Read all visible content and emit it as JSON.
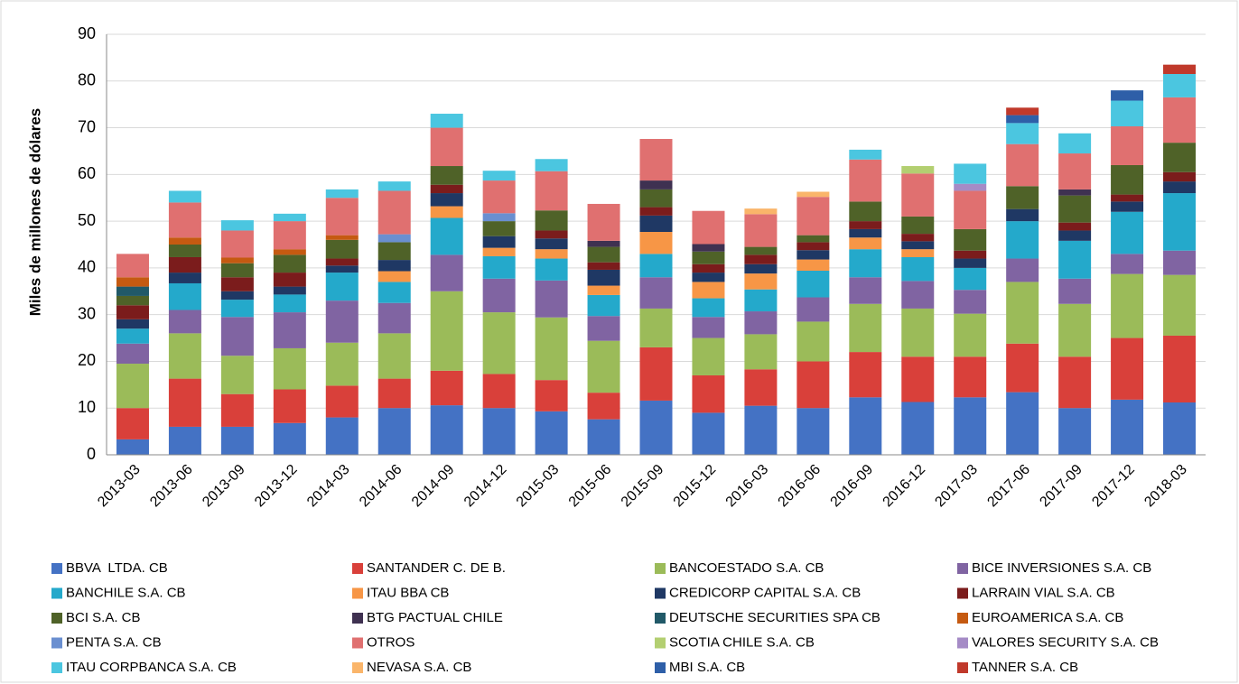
{
  "chart_data": {
    "type": "stacked_bar",
    "y_label": "Miles de millones de dólares",
    "categories": [
      "2013-03",
      "2013-06",
      "2013-09",
      "2013-12",
      "2014-03",
      "2014-06",
      "2014-09",
      "2014-12",
      "2015-03",
      "2015-06",
      "2015-09",
      "2015-12",
      "2016-03",
      "2016-06",
      "2016-09",
      "2016-12",
      "2017-03",
      "2017-06",
      "2017-09",
      "2017-12",
      "2018-03"
    ],
    "ylim": [
      0,
      90
    ],
    "yticks": [
      0,
      10,
      20,
      30,
      40,
      50,
      60,
      70,
      80,
      90
    ],
    "grid": true,
    "legend": "bottom",
    "series": [
      {
        "name": "BBVA  LTDA. CB",
        "color": "#4472c4",
        "values": [
          3.3,
          6,
          6,
          6.8,
          8,
          10,
          10.6,
          10,
          9.3,
          7.6,
          11.6,
          9,
          10.5,
          10,
          12.3,
          11.3,
          12.3,
          13.4,
          10,
          11.8,
          11.2
        ]
      },
      {
        "name": "SANTANDER C. DE B.",
        "color": "#d9403a",
        "values": [
          6.7,
          10.3,
          7,
          7.2,
          6.8,
          6.3,
          7.4,
          7.3,
          6.7,
          5.7,
          11.4,
          8,
          7.8,
          10,
          9.7,
          9.7,
          8.7,
          10.4,
          11,
          13.2,
          14.3
        ]
      },
      {
        "name": "BANCOESTADO S.A. CB",
        "color": "#9bbb59",
        "values": [
          9.5,
          9.7,
          8.2,
          8.8,
          9.2,
          9.7,
          17,
          13.2,
          13.4,
          11.1,
          8.3,
          8,
          7.5,
          8.5,
          10.3,
          10.3,
          9.2,
          13.2,
          11.3,
          13.7,
          13
        ]
      },
      {
        "name": "BICE INVERSIONES S.A. CB",
        "color": "#8064a2",
        "values": [
          4.3,
          5,
          8.3,
          7.7,
          9,
          6.5,
          7.8,
          7.2,
          7.9,
          5.3,
          6.7,
          4.5,
          4.9,
          5.2,
          5.7,
          5.9,
          5.1,
          5,
          5.4,
          4.3,
          5.2
        ]
      },
      {
        "name": "BANCHILE S.A. CB",
        "color": "#24a9cb",
        "values": [
          3.2,
          5.7,
          3.7,
          3.8,
          6,
          4.5,
          7.9,
          4.8,
          4.7,
          4.5,
          5,
          4,
          4.7,
          5.7,
          6,
          5.1,
          4.7,
          8,
          8.1,
          9,
          12.3
        ]
      },
      {
        "name": "ITAU BBA CB",
        "color": "#f79646",
        "values": [
          0,
          0,
          0,
          0,
          0,
          2.3,
          2.5,
          1.8,
          2,
          2,
          4.7,
          3.5,
          3.4,
          2.4,
          2.5,
          1.7,
          0,
          0,
          0,
          0,
          0
        ]
      },
      {
        "name": "CREDICORP CAPITAL S.A. CB",
        "color": "#1f3864",
        "values": [
          2,
          2.3,
          1.8,
          1.7,
          1.5,
          2.4,
          2.8,
          2.5,
          2.3,
          3.4,
          3.5,
          2,
          2,
          2,
          1.8,
          1.7,
          2,
          2.6,
          2.2,
          2.2,
          2.5
        ]
      },
      {
        "name": "LARRAIN VIAL S.A. CB",
        "color": "#7b1c1c",
        "values": [
          3,
          3.3,
          3,
          3,
          1.5,
          0,
          1.8,
          0,
          1.7,
          1.6,
          1.8,
          1.8,
          2,
          1.7,
          1.7,
          1.6,
          1.7,
          0,
          1.7,
          1.5,
          2
        ]
      },
      {
        "name": "BCI S.A. CB",
        "color": "#4f6228",
        "values": [
          2,
          2.7,
          3,
          3.8,
          4,
          3.8,
          4,
          3.2,
          4.3,
          3.3,
          3.8,
          2.7,
          1.7,
          1.5,
          4.2,
          3.7,
          4.6,
          4.9,
          5.8,
          6.3,
          6.3
        ]
      },
      {
        "name": "BTG PACTUAL CHILE",
        "color": "#3f3151",
        "values": [
          0,
          0,
          0,
          0,
          0,
          0,
          0,
          0,
          0,
          1.3,
          1.9,
          1.6,
          0,
          0,
          0,
          0,
          0,
          0,
          1.3,
          0,
          0
        ]
      },
      {
        "name": "DEUTSCHE SECURITIES SPA CB",
        "color": "#215968",
        "values": [
          2,
          0,
          0,
          0,
          0,
          0,
          0,
          0,
          0,
          0,
          0,
          0,
          0,
          0,
          0,
          0,
          0,
          0,
          0,
          0,
          0
        ]
      },
      {
        "name": "EUROAMERICA S.A. CB",
        "color": "#c55a11",
        "values": [
          2,
          1.5,
          1.2,
          1.2,
          1,
          0,
          0,
          0,
          0,
          0,
          0,
          0,
          0,
          0,
          0,
          0,
          0,
          0,
          0,
          0,
          0
        ]
      },
      {
        "name": "PENTA S.A. CB",
        "color": "#6a8fd0",
        "values": [
          0,
          0,
          0,
          0,
          0,
          1.7,
          0,
          1.7,
          0,
          0,
          0,
          0,
          0,
          0,
          0,
          0,
          0,
          0,
          0,
          0,
          0
        ]
      },
      {
        "name": "OTROS",
        "color": "#e07070",
        "values": [
          5,
          7.5,
          5.8,
          6,
          8,
          9.3,
          8.2,
          7,
          8.4,
          7.9,
          8.9,
          7.1,
          7,
          8.2,
          9,
          9.2,
          8.2,
          9,
          7.7,
          8.3,
          9.7
        ]
      },
      {
        "name": "SCOTIA CHILE S.A. CB",
        "color": "#b3cf71",
        "values": [
          0,
          0,
          0,
          0,
          0,
          0,
          0,
          0,
          0,
          0,
          0,
          0,
          0,
          0,
          0,
          1.6,
          0,
          0,
          0,
          0,
          0
        ]
      },
      {
        "name": "VALORES SECURITY S.A. CB",
        "color": "#a58bc6",
        "values": [
          0,
          0,
          0,
          0,
          0,
          0,
          0,
          0,
          0,
          0,
          0,
          0,
          0,
          0,
          0,
          0,
          1.5,
          0,
          0,
          0,
          0
        ]
      },
      {
        "name": "ITAU CORPBANCA S.A. CB",
        "color": "#4bc6e0",
        "values": [
          0,
          2.5,
          2.2,
          1.6,
          1.8,
          2,
          3,
          2.1,
          2.6,
          0,
          0,
          0,
          0,
          0,
          2.1,
          0,
          4.3,
          4.5,
          4.3,
          5.5,
          5
        ]
      },
      {
        "name": "NEVASA S.A. CB",
        "color": "#fab56a",
        "values": [
          0,
          0,
          0,
          0,
          0,
          0,
          0,
          0,
          0,
          0,
          0,
          0,
          1.2,
          1.1,
          0,
          0,
          0,
          0,
          0,
          0,
          0
        ]
      },
      {
        "name": "MBI S.A. CB",
        "color": "#2e5fa8",
        "values": [
          0,
          0,
          0,
          0,
          0,
          0,
          0,
          0,
          0,
          0,
          0,
          0,
          0,
          0,
          0,
          0,
          0,
          1.7,
          0,
          2.2,
          0
        ]
      },
      {
        "name": "TANNER S.A. CB",
        "color": "#c0392b",
        "values": [
          0,
          0,
          0,
          0,
          0,
          0,
          0,
          0,
          0,
          0,
          0,
          0,
          0,
          0,
          0,
          0,
          0,
          1.6,
          0,
          0,
          2
        ]
      }
    ]
  }
}
